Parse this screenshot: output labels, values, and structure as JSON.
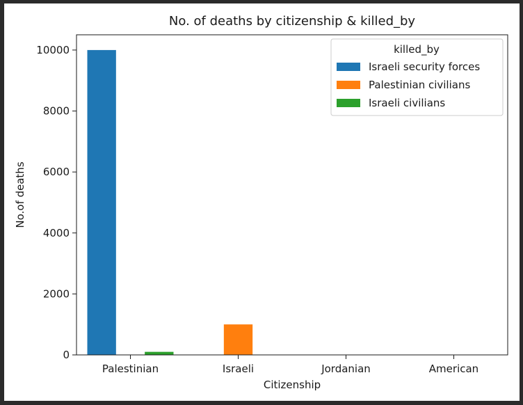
{
  "chart_data": {
    "type": "bar",
    "title": "No. of deaths by citizenship & killed_by",
    "xlabel": "Citizenship",
    "ylabel": "No.of deaths",
    "ylim": [
      0,
      10500
    ],
    "yticks": [
      0,
      2000,
      4000,
      6000,
      8000,
      10000
    ],
    "categories": [
      "Palestinian",
      "Israeli",
      "Jordanian",
      "American"
    ],
    "legend": {
      "title": "killed_by",
      "placement": "top-right"
    },
    "series": [
      {
        "name": "Israeli security forces",
        "color": "#1f77b4",
        "values": [
          10000,
          0,
          0,
          0
        ]
      },
      {
        "name": "Palestinian civilians",
        "color": "#ff7f0e",
        "values": [
          0,
          1000,
          0,
          0
        ]
      },
      {
        "name": "Israeli civilians",
        "color": "#2ca02c",
        "values": [
          100,
          0,
          0,
          0
        ]
      }
    ],
    "grid": false
  }
}
